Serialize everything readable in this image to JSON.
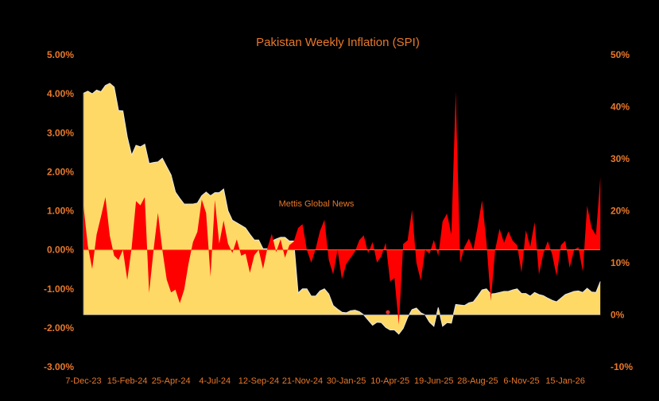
{
  "chart_data": {
    "type": "area",
    "title": "Pakistan Weekly Inflation (SPI)",
    "watermark": "Mettis Global News",
    "x_tick_labels": [
      "7-Dec-23",
      "15-Feb-24",
      "25-Apr-24",
      "4-Jul-24",
      "12-Sep-24",
      "21-Nov-24",
      "30-Jan-25",
      "10-Apr-25",
      "19-Jun-25",
      "28-Aug-25",
      "6-Nov-25",
      "15-Jan-26"
    ],
    "x_tick_every_weeks": 10,
    "left_axis": {
      "ylim": [
        -3,
        5
      ],
      "ticks": [
        "5.00%",
        "4.00%",
        "3.00%",
        "2.00%",
        "1.00%",
        "0.00%",
        "-1.00%",
        "-2.00%",
        "-3.00%"
      ]
    },
    "right_axis": {
      "ylim": [
        -10,
        50
      ],
      "ticks": [
        "50%",
        "40%",
        "30%",
        "20%",
        "10%",
        "0%",
        "-10%"
      ]
    },
    "grid": false,
    "legend": "none",
    "colors": {
      "background": "#000000",
      "yoy_fill": "#ffd966",
      "wow_fill": "#ff0000",
      "text": "#e8782a"
    },
    "series": [
      {
        "axis": "right",
        "color": "#ffd966",
        "values": [
          42.6,
          43.0,
          42.5,
          43.2,
          42.9,
          44.1,
          44.5,
          43.8,
          39.3,
          39.2,
          34.2,
          30.7,
          32.6,
          32.3,
          32.8,
          29.1,
          29.3,
          29.4,
          30.1,
          28.5,
          26.9,
          23.6,
          22.4,
          21.3,
          21.3,
          21.3,
          21.5,
          22.9,
          23.6,
          22.9,
          23.5,
          23.5,
          24.2,
          20.0,
          18.2,
          17.7,
          17.2,
          16.7,
          15.5,
          14.4,
          14.4,
          12.7,
          12.7,
          14.2,
          14.6,
          14.9,
          14.9,
          14.2,
          14.2,
          4.2,
          5.0,
          5.0,
          3.6,
          3.6,
          4.6,
          5.0,
          4.0,
          1.8,
          1.1,
          0.5,
          0.4,
          0.8,
          0.9,
          0.6,
          0.0,
          -1.0,
          -2.0,
          -1.4,
          -1.5,
          -2.4,
          -2.9,
          -2.9,
          -3.7,
          -2.6,
          -0.5,
          1.0,
          1.3,
          0.4,
          0.0,
          -1.4,
          -2.2,
          1.4,
          -2.2,
          -1.5,
          -1.6,
          2.0,
          1.9,
          1.8,
          2.3,
          2.5,
          3.6,
          4.8,
          5.0,
          4.0,
          4.1,
          4.3,
          4.5,
          4.5,
          4.8,
          5.0,
          4.1,
          4.1,
          3.6,
          4.3,
          3.9,
          3.7,
          3.2,
          2.8,
          2.5,
          3.2,
          3.9,
          4.2,
          4.5,
          4.6,
          4.3,
          5.1,
          4.4,
          4.3,
          6.4
        ]
      },
      {
        "axis": "left",
        "color": "#ff0000",
        "values": [
          1.13,
          0.1,
          -0.49,
          0.39,
          0.85,
          1.35,
          0.36,
          -0.15,
          -0.26,
          0.0,
          -0.77,
          0.05,
          1.25,
          1.14,
          1.35,
          -1.1,
          0.0,
          0.95,
          0.0,
          -0.76,
          -1.09,
          -1.02,
          -1.37,
          -1.02,
          -0.35,
          0.2,
          0.46,
          1.29,
          0.94,
          -0.69,
          1.28,
          0.16,
          0.75,
          0.16,
          -0.08,
          0.27,
          -0.15,
          -0.1,
          -0.59,
          -0.14,
          0.0,
          -0.49,
          0.05,
          0.41,
          -0.06,
          0.27,
          -0.2,
          0.12,
          0.21,
          0.56,
          0.66,
          0.0,
          -0.33,
          0.02,
          0.48,
          0.77,
          -0.26,
          -0.63,
          0.0,
          -0.75,
          -0.36,
          -0.2,
          -0.04,
          0.25,
          0.37,
          -0.09,
          0.2,
          -0.33,
          -0.16,
          0.18,
          -0.81,
          -0.72,
          -1.92,
          0.15,
          0.24,
          1.02,
          -0.33,
          -0.79,
          0.0,
          -0.1,
          0.25,
          -0.16,
          0.73,
          0.93,
          0.39,
          4.05,
          -0.33,
          0.08,
          0.29,
          0.0,
          0.6,
          1.27,
          0.2,
          -1.31,
          0.0,
          0.54,
          0.18,
          0.47,
          0.23,
          0.12,
          -0.58,
          0.5,
          0.08,
          0.71,
          -0.63,
          -0.09,
          0.22,
          -0.12,
          -0.67,
          0.12,
          0.23,
          -0.46,
          0.0,
          0.07,
          -0.56,
          1.13,
          0.56,
          0.37,
          1.86
        ]
      }
    ],
    "marker": {
      "axis": "left",
      "week_index": 69.5,
      "value": -1.6,
      "color": "#e0302a"
    }
  }
}
